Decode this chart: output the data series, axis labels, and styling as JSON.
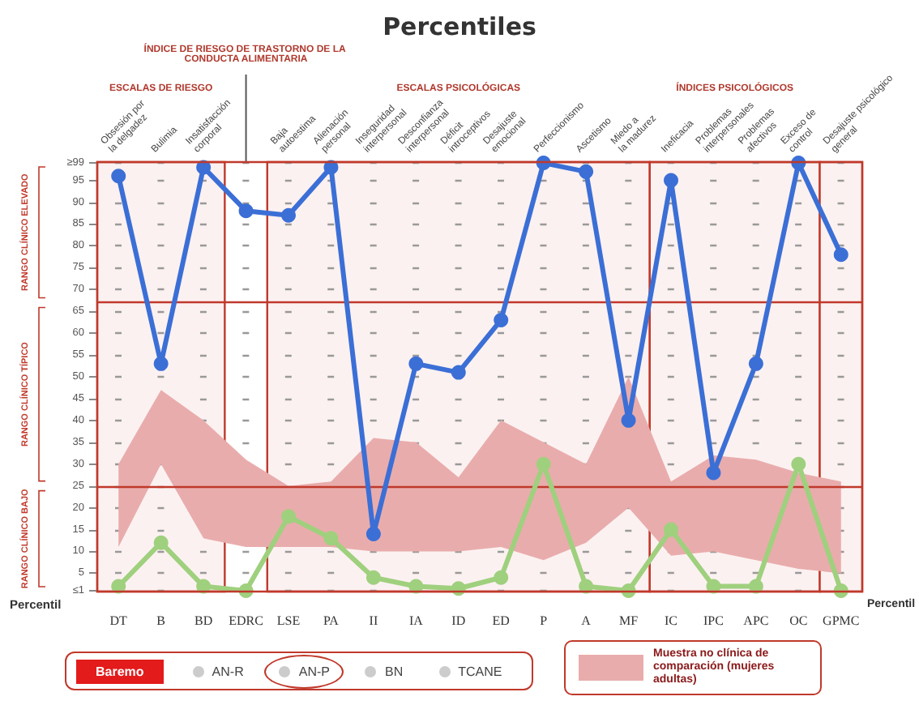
{
  "chart_data": {
    "type": "line",
    "title": "Percentiles",
    "categories": [
      "DT",
      "B",
      "BD",
      "EDRC",
      "LSE",
      "PA",
      "II",
      "IA",
      "ID",
      "ED",
      "P",
      "A",
      "MF",
      "IC",
      "IPC",
      "APC",
      "OC",
      "GPMC"
    ],
    "series": [
      {
        "color": "#3b6fd6",
        "values": [
          96,
          53,
          98,
          88,
          87,
          98,
          14,
          53,
          51,
          63,
          99,
          97,
          40,
          95,
          28,
          53,
          99,
          78
        ]
      },
      {
        "color": "#9fd07e",
        "values": [
          2,
          12,
          2,
          1,
          18,
          13,
          4,
          2,
          1.5,
          4,
          30,
          2,
          1,
          15,
          2,
          2,
          30,
          1
        ]
      },
      {
        "type": "area",
        "color": "#e9acac",
        "values": [
          null,
          null,
          null,
          null,
          null,
          null,
          null,
          null,
          null,
          null,
          null,
          null,
          null,
          null,
          null,
          null,
          null,
          null
        ],
        "lower": [
          11,
          30,
          13,
          11,
          11,
          11,
          10,
          10,
          10,
          11,
          8,
          12,
          20,
          9,
          10,
          8,
          6,
          5
        ],
        "upper": [
          30,
          47,
          40,
          31,
          25,
          26,
          36,
          35,
          27,
          40,
          35,
          30,
          50,
          26,
          32,
          31,
          28,
          26
        ]
      }
    ],
    "ylim": [
      0.8,
      99.2
    ],
    "yticks": [
      {
        "value": 1,
        "label": "≤1"
      },
      5,
      10,
      15,
      20,
      25,
      30,
      35,
      40,
      45,
      50,
      55,
      60,
      65,
      70,
      75,
      80,
      85,
      90,
      95,
      {
        "value": 99,
        "label": "≥99"
      }
    ],
    "grid": "y",
    "marker": "circle",
    "line_style": "solid",
    "ref_lines": [
      {
        "axis": "y",
        "value": 67,
        "label": null,
        "color": "#c0392b"
      },
      {
        "axis": "y",
        "value": 25,
        "label": null,
        "color": "#c0392b"
      }
    ],
    "bands": [
      {
        "axis": "x",
        "from": "DT",
        "to": "BD",
        "color": "#fcf1f1"
      },
      {
        "axis": "x",
        "from": "LSE",
        "to": "MF",
        "color": "#fcf1f1"
      },
      {
        "axis": "x",
        "from": "IC",
        "to": "OC",
        "color": "#fcf1f1"
      },
      {
        "axis": "x",
        "from": "GPMC",
        "to": "GPMC",
        "color": "#fcf1f1"
      }
    ],
    "annotations": [
      "Percentil",
      "Percentil",
      "RANGO CLÍNICO ELEVADO",
      "RANGO CLÍNICO TÍPICO",
      "RANGO CLÍNICO BAJO",
      "ESCALAS DE RIESGO",
      "ÍNDICE DE RIESGO DE TRASTORNO DE LA CONDUCTA ALIMENTARIA",
      "ESCALAS PSICOLÓGICAS",
      "ÍNDICES PSICOLÓGICOS",
      "Baremo",
      "AN-R",
      "AN-P",
      "BN",
      "TCANE",
      "Muestra no clínica de comparación (mujeres adultas)",
      "Obsesión por la delgadez",
      "Bulimia",
      "Insatisfacción corporal",
      "Baja autoestima",
      "Alienación personal",
      "Inseguridad interpersonal",
      "Desconfianza interpersonal",
      "Déficit introceptivos",
      "Desajuste emocional",
      "Perfeccionismo",
      "Ascetismo",
      "Miedo a la madurez",
      "Ineficacia",
      "Problemas interpersonales",
      "Problemas afectivos",
      "Exceso de control",
      "Desajuste psicológico general"
    ]
  }
}
